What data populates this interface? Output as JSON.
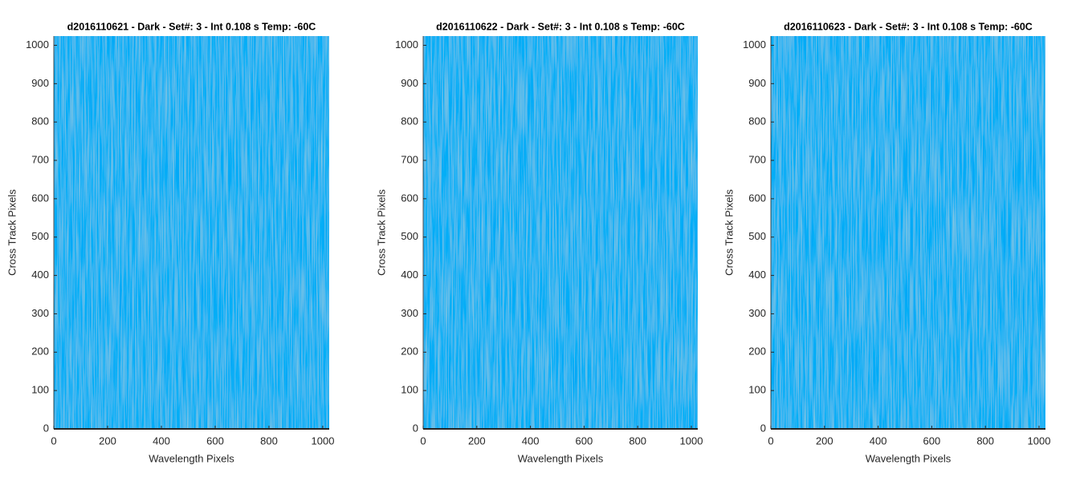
{
  "chart_data": [
    {
      "type": "heatmap",
      "title": "d2016110621 - Dark - Set#: 3 - Int 0.108 s Temp: -60C",
      "xlabel": "Wavelength Pixels",
      "ylabel": "Cross Track Pixels",
      "xlim": [
        0,
        1024
      ],
      "ylim": [
        0,
        1024
      ],
      "xticks": [
        0,
        200,
        400,
        600,
        800,
        1000
      ],
      "yticks": [
        0,
        100,
        200,
        300,
        400,
        500,
        600,
        700,
        800,
        900,
        1000
      ]
    },
    {
      "type": "heatmap",
      "title": "d2016110622 - Dark - Set#: 3 - Int 0.108 s Temp: -60C",
      "xlabel": "Wavelength Pixels",
      "ylabel": "Cross Track Pixels",
      "xlim": [
        0,
        1024
      ],
      "ylim": [
        0,
        1024
      ],
      "xticks": [
        0,
        200,
        400,
        600,
        800,
        1000
      ],
      "yticks": [
        0,
        100,
        200,
        300,
        400,
        500,
        600,
        700,
        800,
        900,
        1000
      ]
    },
    {
      "type": "heatmap",
      "title": "d2016110623 - Dark - Set#: 3 - Int 0.108 s Temp: -60C",
      "xlabel": "Wavelength Pixels",
      "ylabel": "Cross Track Pixels",
      "xlim": [
        0,
        1024
      ],
      "ylim": [
        0,
        1024
      ],
      "xticks": [
        0,
        200,
        400,
        600,
        800,
        1000
      ],
      "yticks": [
        0,
        100,
        200,
        300,
        400,
        500,
        600,
        700,
        800,
        900,
        1000
      ]
    }
  ]
}
